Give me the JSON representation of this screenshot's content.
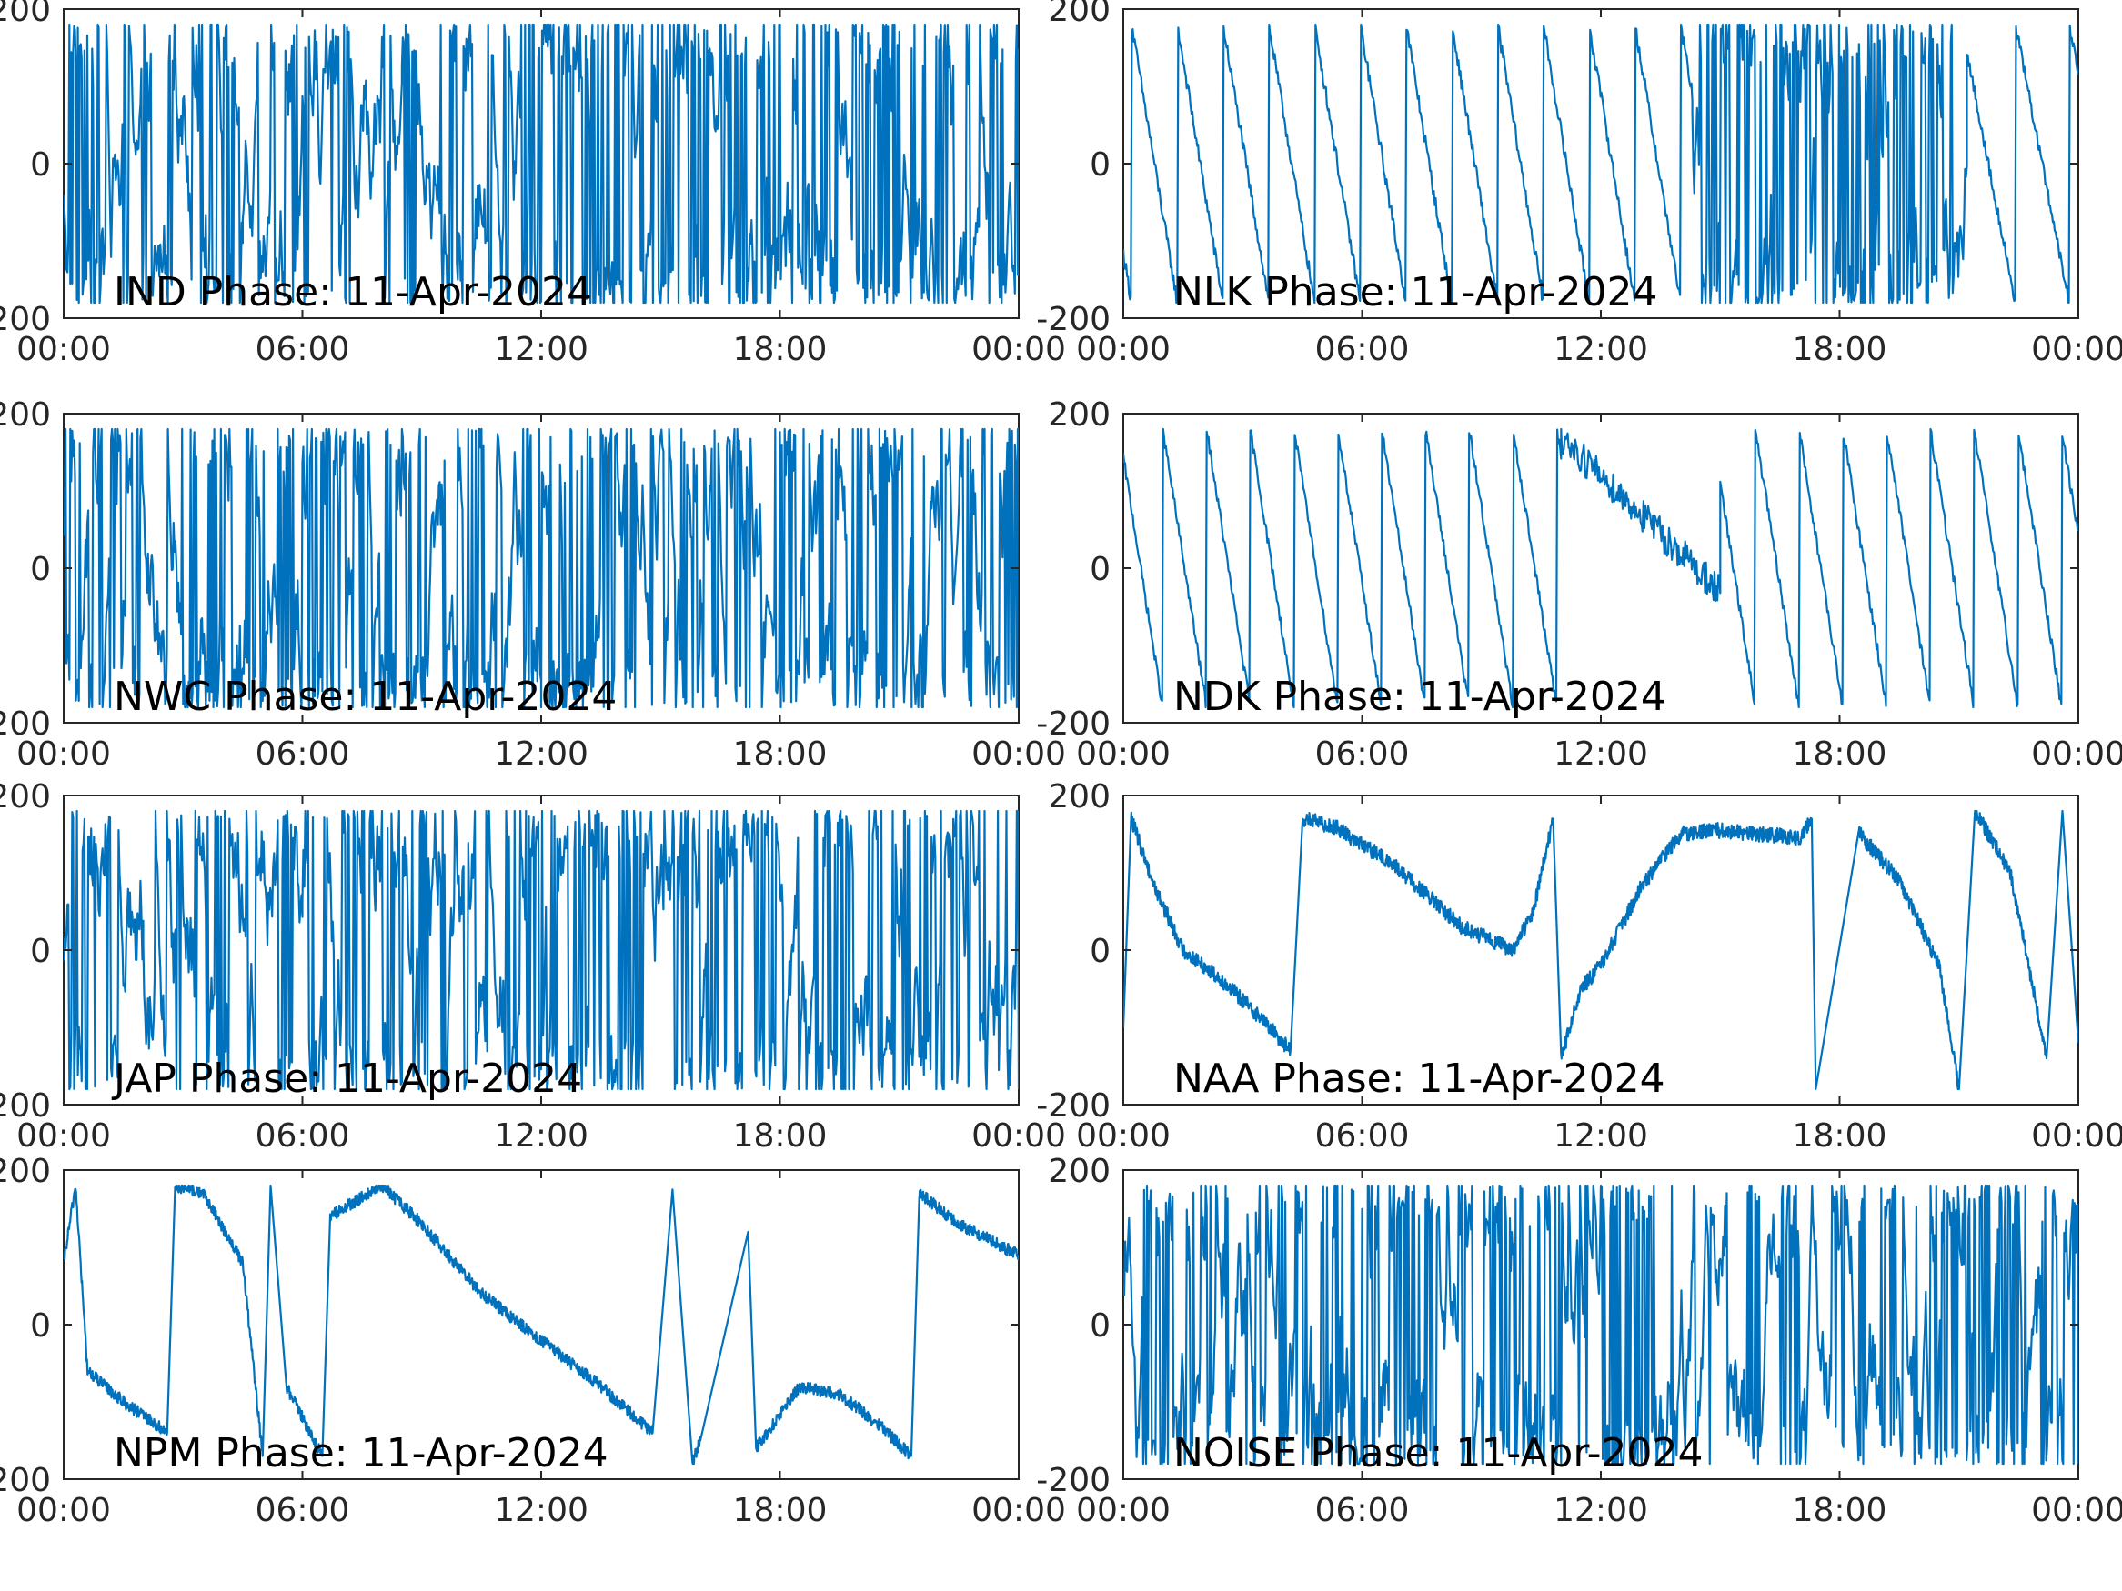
{
  "figure": {
    "date": "11-Apr-2024",
    "line_color": "#0072BD",
    "x_tick_labels": [
      "00:00",
      "06:00",
      "12:00",
      "18:00",
      "00:00"
    ]
  },
  "chart_data": [
    {
      "type": "line",
      "title": "IND Phase: 11-Apr-2024",
      "xlabel": "",
      "ylabel": "",
      "x_unit": "hours since 00:00",
      "xlim": [
        0,
        24
      ],
      "ylim": [
        -200,
        200
      ],
      "y_ticks": [
        -200,
        0,
        200
      ],
      "y_tick_labels": [
        "-200",
        "0",
        "200"
      ],
      "grid": false,
      "series": [
        {
          "style": "noise",
          "segments": [
            {
              "x0": 0,
              "x1": 4.5,
              "rate": 7
            },
            {
              "x0": 4.5,
              "x1": 8.5,
              "rate": 3.5
            },
            {
              "x0": 8.5,
              "x1": 11.5,
              "rate": 5
            },
            {
              "x0": 11.5,
              "x1": 16,
              "rate": 20
            },
            {
              "x0": 16,
              "x1": 24,
              "rate": 12
            }
          ]
        }
      ]
    },
    {
      "type": "line",
      "title": "NLK Phase: 11-Apr-2024",
      "xlabel": "",
      "ylabel": "",
      "x_unit": "hours since 00:00",
      "xlim": [
        0,
        24
      ],
      "ylim": [
        -200,
        200
      ],
      "y_ticks": [
        -200,
        0,
        200
      ],
      "y_tick_labels": [
        "-200",
        "0",
        "200"
      ],
      "grid": false,
      "series": [
        {
          "style": "sawtooth",
          "segments": [
            {
              "x0": 0,
              "x1": 14.3,
              "period": 1.15,
              "dir": -1,
              "phase": 0.82,
              "jitter": 9
            },
            {
              "x0": 14.3,
              "x1": 21.2,
              "style": "noise",
              "rate": 16
            },
            {
              "x0": 21.2,
              "x1": 24,
              "period": 1.35,
              "dir": -1,
              "phase": 0.1,
              "jitter": 8
            }
          ]
        }
      ]
    },
    {
      "type": "line",
      "title": "NWC Phase: 11-Apr-2024",
      "xlabel": "",
      "ylabel": "",
      "x_unit": "hours since 00:00",
      "xlim": [
        0,
        24
      ],
      "ylim": [
        -200,
        200
      ],
      "y_ticks": [
        -200,
        0,
        200
      ],
      "y_tick_labels": [
        "-200",
        "0",
        "200"
      ],
      "grid": false,
      "series": [
        {
          "style": "noise",
          "segments": [
            {
              "x0": 0,
              "x1": 12,
              "rate": 10
            },
            {
              "x0": 12,
              "x1": 16,
              "rate": 13
            },
            {
              "x0": 16,
              "x1": 20.5,
              "rate": 6
            },
            {
              "x0": 20.5,
              "x1": 24,
              "rate": 11
            }
          ]
        }
      ]
    },
    {
      "type": "line",
      "title": "NDK Phase: 11-Apr-2024",
      "xlabel": "",
      "ylabel": "",
      "x_unit": "hours since 00:00",
      "xlim": [
        0,
        24
      ],
      "ylim": [
        -200,
        200
      ],
      "y_ticks": [
        -200,
        0,
        200
      ],
      "y_tick_labels": [
        "-200",
        "0",
        "200"
      ],
      "grid": false,
      "series": [
        {
          "style": "sawtooth",
          "segments": [
            {
              "x0": 0,
              "x1": 11,
              "period": 1.1,
              "dir": -1,
              "phase": 0.1,
              "jitter": 7
            },
            {
              "x0": 11,
              "x1": 15,
              "style": "drift",
              "y0": 170,
              "y1": -30,
              "jitter": 22
            },
            {
              "x0": 15,
              "x1": 24,
              "period": 1.1,
              "dir": -1,
              "phase": 0.2,
              "jitter": 8
            }
          ]
        }
      ]
    },
    {
      "type": "line",
      "title": "JAP Phase: 11-Apr-2024",
      "xlabel": "",
      "ylabel": "",
      "x_unit": "hours since 00:00",
      "xlim": [
        0,
        24
      ],
      "ylim": [
        -200,
        200
      ],
      "y_ticks": [
        -200,
        0,
        200
      ],
      "y_tick_labels": [
        "-200",
        "0",
        "200"
      ],
      "grid": false,
      "series": [
        {
          "style": "noise",
          "segments": [
            {
              "x0": 0,
              "x1": 2,
              "rate": 6
            },
            {
              "x0": 2,
              "x1": 6,
              "rate": 4
            },
            {
              "x0": 6,
              "x1": 24,
              "rate": 11
            }
          ]
        }
      ]
    },
    {
      "type": "line",
      "title": "NAA Phase: 11-Apr-2024",
      "xlabel": "",
      "ylabel": "",
      "x_unit": "hours since 00:00",
      "xlim": [
        0,
        24
      ],
      "ylim": [
        -200,
        200
      ],
      "y_ticks": [
        -200,
        0,
        200
      ],
      "y_tick_labels": [
        "-200",
        "0",
        "200"
      ],
      "grid": false,
      "series": [
        {
          "style": "piecewise",
          "points": [
            [
              0,
              -100
            ],
            [
              0.2,
              170
            ],
            [
              0.8,
              80
            ],
            [
              1.5,
              0
            ],
            [
              2.5,
              -40
            ],
            [
              3.5,
              -90
            ],
            [
              4.2,
              -130
            ],
            [
              4.5,
              170
            ],
            [
              5.3,
              160
            ],
            [
              6.8,
              110
            ],
            [
              8.5,
              30
            ],
            [
              9.8,
              0
            ],
            [
              10.3,
              50
            ],
            [
              10.8,
              170
            ],
            [
              11,
              -140
            ],
            [
              11.5,
              -50
            ],
            [
              12,
              -20
            ],
            [
              13,
              80
            ],
            [
              14,
              150
            ],
            [
              15,
              155
            ],
            [
              16,
              150
            ],
            [
              17,
              145
            ],
            [
              17.3,
              170
            ],
            [
              17.4,
              -180
            ],
            [
              18.5,
              150
            ],
            [
              19.5,
              90
            ],
            [
              20.5,
              -20
            ],
            [
              21,
              -180
            ],
            [
              21.4,
              180
            ],
            [
              22.3,
              100
            ],
            [
              23.2,
              -140
            ],
            [
              23.6,
              180
            ],
            [
              24,
              -120
            ]
          ],
          "jitter": 10
        }
      ]
    },
    {
      "type": "line",
      "title": "NPM Phase: 11-Apr-2024",
      "xlabel": "",
      "ylabel": "",
      "x_unit": "hours since 00:00",
      "xlim": [
        0,
        24
      ],
      "ylim": [
        -200,
        200
      ],
      "y_ticks": [
        -200,
        0,
        200
      ],
      "y_tick_labels": [
        "-200",
        "0",
        "200"
      ],
      "grid": false,
      "series": [
        {
          "style": "piecewise",
          "points": [
            [
              0,
              80
            ],
            [
              0.3,
              180
            ],
            [
              0.6,
              -60
            ],
            [
              1.5,
              -100
            ],
            [
              2.6,
              -140
            ],
            [
              2.8,
              180
            ],
            [
              3.5,
              170
            ],
            [
              4.5,
              80
            ],
            [
              5,
              -170
            ],
            [
              5.2,
              180
            ],
            [
              5.6,
              -80
            ],
            [
              6.5,
              -170
            ],
            [
              6.7,
              140
            ],
            [
              8,
              180
            ],
            [
              9,
              130
            ],
            [
              10.5,
              40
            ],
            [
              12,
              -20
            ],
            [
              13.5,
              -80
            ],
            [
              14.8,
              -140
            ],
            [
              15.3,
              175
            ],
            [
              15.8,
              -180
            ],
            [
              16,
              -150
            ],
            [
              17.2,
              120
            ],
            [
              17.4,
              -160
            ],
            [
              18.5,
              -80
            ],
            [
              19.5,
              -90
            ],
            [
              20.5,
              -130
            ],
            [
              21.3,
              -170
            ],
            [
              21.5,
              170
            ],
            [
              22.5,
              130
            ],
            [
              24,
              90
            ]
          ],
          "jitter": 8
        }
      ]
    },
    {
      "type": "line",
      "title": "NOISE Phase: 11-Apr-2024",
      "xlabel": "",
      "ylabel": "",
      "x_unit": "hours since 00:00",
      "xlim": [
        0,
        24
      ],
      "ylim": [
        -200,
        200
      ],
      "y_ticks": [
        -200,
        0,
        200
      ],
      "y_tick_labels": [
        "-200",
        "0",
        "200"
      ],
      "grid": false,
      "series": [
        {
          "style": "noise",
          "segments": [
            {
              "x0": 0,
              "x1": 14,
              "rate": 11
            },
            {
              "x0": 14,
              "x1": 16.5,
              "rate": 4
            },
            {
              "x0": 16.5,
              "x1": 24,
              "rate": 10
            }
          ]
        }
      ]
    }
  ]
}
